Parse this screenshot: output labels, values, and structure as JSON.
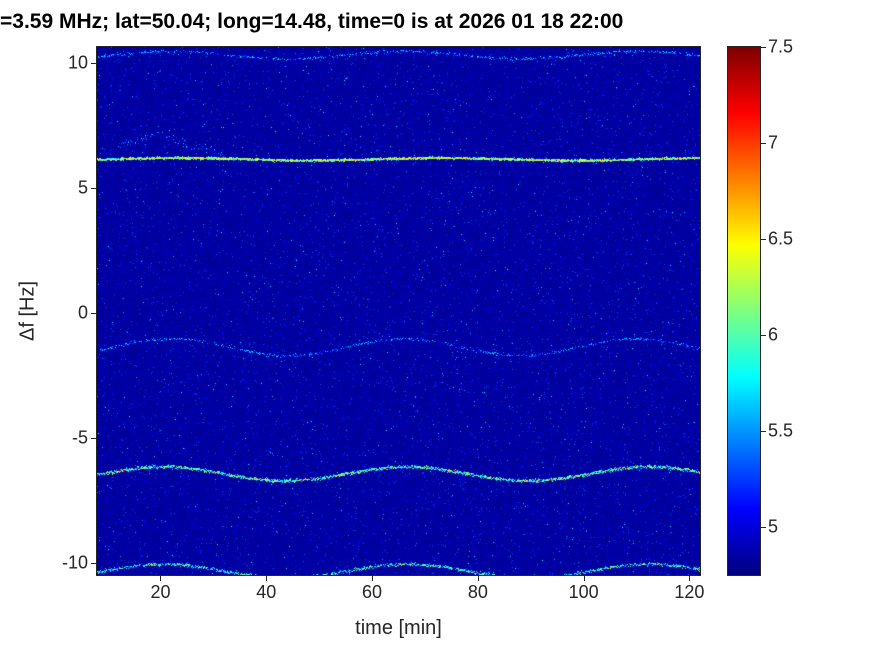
{
  "chart_data": {
    "type": "heatmap",
    "title": "=3.59 MHz;  lat=50.04; long=14.48, time=0 is at 2026 01 18 22:00",
    "xlabel": "time [min]",
    "ylabel": "Δf [Hz]",
    "xlim": [
      8,
      122
    ],
    "ylim": [
      -10.5,
      10.65
    ],
    "xticks": [
      20,
      40,
      60,
      80,
      100,
      120
    ],
    "yticks": [
      -10,
      -5,
      0,
      5,
      10
    ],
    "grid": false,
    "colorbar": {
      "colormap": "jet",
      "clim": [
        4.75,
        7.5
      ],
      "ticks": [
        5,
        5.5,
        6,
        6.5,
        7,
        7.5
      ],
      "position": "right"
    },
    "background_level": 4.8,
    "noise_levels": [
      4.8,
      5.8
    ],
    "traces": [
      {
        "name": "upper-edge-trace",
        "y": 10.32,
        "amp": 0.15,
        "period": 44,
        "phase": 11,
        "values": [
          5.0,
          5.8
        ],
        "hot_prob": 0.0,
        "hot_values": [
          5.8,
          6.0
        ],
        "density": 1.5,
        "thickness": 1.5,
        "cover": 0.75
      },
      {
        "name": "strong-line-6hz",
        "y": 6.15,
        "amp": 0.05,
        "period": 50,
        "phase": 11,
        "values": [
          5.5,
          6.5
        ],
        "hot_prob": 0.03,
        "hot_values": [
          6.5,
          6.9
        ],
        "density": 5.0,
        "thickness": 1.1,
        "cover": 1.0
      },
      {
        "name": "mid-wavy-trace",
        "y": -1.38,
        "amp": 0.34,
        "period": 44,
        "phase": 11,
        "values": [
          5.0,
          5.8
        ],
        "hot_prob": 0.0,
        "hot_values": [
          5.8,
          6.0
        ],
        "density": 1.4,
        "thickness": 1.5,
        "cover": 0.72
      },
      {
        "name": "lower-strong-trace",
        "y": -6.45,
        "amp": 0.28,
        "period": 46,
        "phase": 9,
        "values": [
          5.3,
          6.4
        ],
        "hot_prob": 0.015,
        "hot_values": [
          6.8,
          7.3
        ],
        "density": 3.0,
        "thickness": 1.6,
        "cover": 1.0
      },
      {
        "name": "bottom-trace",
        "y": -10.35,
        "amp": 0.28,
        "period": 46,
        "phase": 9,
        "values": [
          5.2,
          6.3
        ],
        "hot_prob": 0.006,
        "hot_values": [
          6.5,
          6.9
        ],
        "density": 2.2,
        "thickness": 1.6,
        "cover": 0.95
      }
    ],
    "blob": {
      "name": "diffuse-bump-above-line",
      "t_range": [
        12,
        32
      ],
      "t_center": 19,
      "t_sigma": 5.5,
      "y_base": 6.35,
      "y_peak": 0.75,
      "values": [
        5.0,
        5.7
      ],
      "density": 0.5
    }
  }
}
